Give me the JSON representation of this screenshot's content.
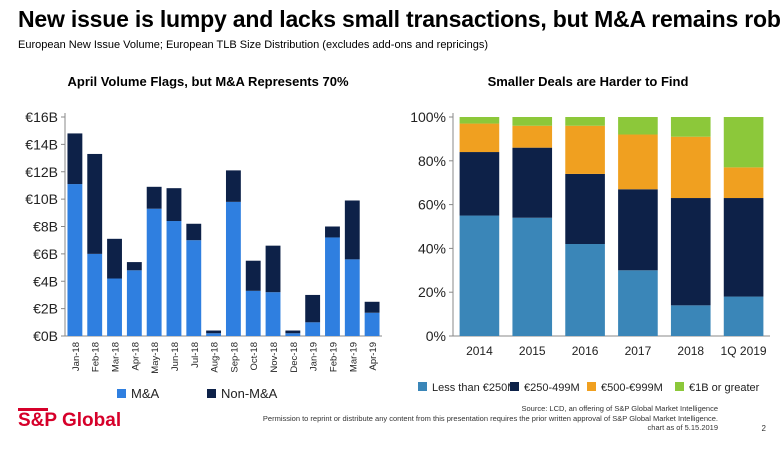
{
  "slide": {
    "title": "New issue is lumpy and lacks small transactions, but M&A remains robust",
    "subtitle": "European New Issue Volume; European TLB Size Distribution (excludes add-ons and repricings)",
    "logo": "S&P Global",
    "source": "Source: LCD, an offering of S&P Global Market Intelligence",
    "permission": "Permission to reprint or distribute any content from this presentation requires the prior written approval of S&P Global Market Intelligence.",
    "date_note": "chart as of 5.15.2019",
    "page_number": "2"
  },
  "chart_data": [
    {
      "type": "bar",
      "stacked": true,
      "title": "April Volume Flags, but M&A Represents 70%",
      "categories": [
        "Jan-18",
        "Feb-18",
        "Mar-18",
        "Apr-18",
        "May-18",
        "Jun-18",
        "Jul-18",
        "Aug-18",
        "Sep-18",
        "Oct-18",
        "Nov-18",
        "Dec-18",
        "Jan-19",
        "Feb-19",
        "Mar-19",
        "Apr-19"
      ],
      "series": [
        {
          "name": "M&A",
          "color": "#2f7fe0",
          "values": [
            11.1,
            6.0,
            4.2,
            4.8,
            9.3,
            8.4,
            7.0,
            0.2,
            9.8,
            3.3,
            3.2,
            0.2,
            1.0,
            7.2,
            5.6,
            1.7
          ]
        },
        {
          "name": "Non-M&A",
          "color": "#0d2148",
          "values": [
            3.7,
            7.3,
            2.9,
            0.6,
            1.6,
            2.4,
            1.2,
            0.2,
            2.3,
            2.2,
            3.4,
            0.2,
            2.0,
            0.8,
            4.3,
            0.8
          ]
        }
      ],
      "y_ticks": [
        "€0B",
        "€2B",
        "€4B",
        "€6B",
        "€8B",
        "€10B",
        "€12B",
        "€14B",
        "€16B"
      ],
      "ylim": [
        0,
        16
      ],
      "grid": false,
      "legend": "bottom"
    },
    {
      "type": "bar",
      "stacked": true,
      "percent": true,
      "title": "Smaller Deals are Harder to Find",
      "categories": [
        "2014",
        "2015",
        "2016",
        "2017",
        "2018",
        "1Q 2019"
      ],
      "series": [
        {
          "name": "Less than €250M",
          "color": "#3a86b8",
          "values": [
            55,
            54,
            42,
            30,
            14,
            18
          ]
        },
        {
          "name": "€250-499M",
          "color": "#0d2148",
          "values": [
            29,
            32,
            32,
            37,
            49,
            45
          ]
        },
        {
          "name": "€500-€999M",
          "color": "#f0a020",
          "values": [
            13,
            10,
            22,
            25,
            28,
            14
          ]
        },
        {
          "name": "€1B or greater",
          "color": "#8cc83a",
          "values": [
            3,
            4,
            4,
            8,
            9,
            23
          ]
        }
      ],
      "y_ticks": [
        "0%",
        "20%",
        "40%",
        "60%",
        "80%",
        "100%"
      ],
      "ylim": [
        0,
        100
      ],
      "grid": false,
      "legend": "bottom"
    }
  ]
}
